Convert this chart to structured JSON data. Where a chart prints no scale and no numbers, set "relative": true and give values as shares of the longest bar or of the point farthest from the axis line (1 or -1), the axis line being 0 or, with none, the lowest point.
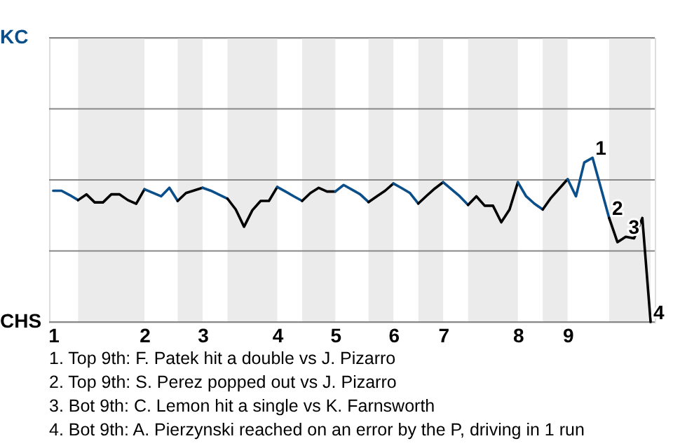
{
  "chart_data": {
    "type": "line",
    "relative": true,
    "categories": [
      "1",
      null,
      null,
      null,
      null,
      null,
      null,
      null,
      null,
      null,
      null,
      "2",
      null,
      null,
      null,
      null,
      null,
      null,
      "3",
      null,
      null,
      null,
      null,
      null,
      null,
      null,
      null,
      "4",
      null,
      null,
      null,
      null,
      null,
      null,
      "5",
      null,
      null,
      null,
      null,
      null,
      null,
      "6",
      null,
      null,
      null,
      null,
      null,
      "7",
      null,
      null,
      null,
      null,
      null,
      null,
      null,
      null,
      "8",
      null,
      null,
      null,
      null,
      null,
      "9",
      null,
      null,
      null,
      null,
      null,
      null,
      null,
      null,
      null,
      null
    ],
    "series": [
      {
        "color": "#0b4f8a",
        "values": [
          0.799,
          0.799,
          0.772,
          0.742,
          null,
          null,
          null,
          null,
          null,
          null,
          null,
          null,
          null,
          null,
          null,
          null,
          null,
          null,
          null,
          null,
          null,
          null,
          null,
          null,
          null,
          null,
          null,
          null,
          null,
          null,
          null,
          null,
          null,
          null,
          null,
          null,
          null,
          null,
          null,
          null,
          null,
          null,
          null,
          null,
          null,
          null,
          null,
          null,
          null,
          null,
          null,
          null,
          null,
          null,
          null,
          null,
          null,
          null,
          null,
          null,
          null,
          null,
          null,
          null,
          null,
          null,
          null,
          null,
          null,
          null,
          null,
          null,
          null
        ]
      },
      {
        "color": "#000000",
        "values": [
          null,
          null,
          null,
          0.742,
          0.777,
          0.728,
          0.728,
          0.777,
          0.777,
          0.742,
          0.72,
          0.808,
          null,
          null,
          null,
          null,
          null,
          null,
          null,
          null,
          null,
          null,
          null,
          null,
          null,
          null,
          null,
          null,
          null,
          null,
          null,
          null,
          null,
          null,
          null,
          null,
          null,
          null,
          null,
          null,
          null,
          null,
          null,
          null,
          null,
          null,
          null,
          null,
          null,
          null,
          null,
          null,
          null,
          null,
          null,
          null,
          null,
          null,
          null,
          null,
          null,
          null,
          null,
          null,
          null,
          null,
          null,
          null,
          null,
          null,
          null,
          null,
          null
        ]
      },
      {
        "color": "#0b4f8a",
        "values": [
          null,
          null,
          null,
          null,
          null,
          null,
          null,
          null,
          null,
          null,
          null,
          0.808,
          0.787,
          0.765,
          0.817,
          0.737,
          null,
          null,
          null,
          null,
          null,
          null,
          null,
          null,
          null,
          null,
          null,
          null,
          null,
          null,
          null,
          null,
          null,
          null,
          null,
          null,
          null,
          null,
          null,
          null,
          null,
          null,
          null,
          null,
          null,
          null,
          null,
          null,
          null,
          null,
          null,
          null,
          null,
          null,
          null,
          null,
          null,
          null,
          null,
          null,
          null,
          null,
          null,
          null,
          null,
          null,
          null,
          null,
          null,
          null,
          null,
          null,
          null
        ]
      },
      {
        "color": "#000000",
        "values": [
          null,
          null,
          null,
          null,
          null,
          null,
          null,
          null,
          null,
          null,
          null,
          null,
          null,
          null,
          null,
          0.737,
          0.785,
          0.801,
          0.817,
          null,
          null,
          null,
          null,
          null,
          null,
          null,
          null,
          null,
          null,
          null,
          null,
          null,
          null,
          null,
          null,
          null,
          null,
          null,
          null,
          null,
          null,
          null,
          null,
          null,
          null,
          null,
          null,
          null,
          null,
          null,
          null,
          null,
          null,
          null,
          null,
          null,
          null,
          null,
          null,
          null,
          null,
          null,
          null,
          null,
          null,
          null,
          null,
          null,
          null,
          null,
          null,
          null,
          null
        ]
      },
      {
        "color": "#0b4f8a",
        "values": [
          null,
          null,
          null,
          null,
          null,
          null,
          null,
          null,
          null,
          null,
          null,
          null,
          null,
          null,
          null,
          null,
          null,
          null,
          0.817,
          0.799,
          0.775,
          0.751,
          null,
          null,
          null,
          null,
          null,
          null,
          null,
          null,
          null,
          null,
          null,
          null,
          null,
          null,
          null,
          null,
          null,
          null,
          null,
          null,
          null,
          null,
          null,
          null,
          null,
          null,
          null,
          null,
          null,
          null,
          null,
          null,
          null,
          null,
          null,
          null,
          null,
          null,
          null,
          null,
          null,
          null,
          null,
          null,
          null,
          null,
          null,
          null,
          null,
          null,
          null
        ]
      },
      {
        "color": "#000000",
        "values": [
          null,
          null,
          null,
          null,
          null,
          null,
          null,
          null,
          null,
          null,
          null,
          null,
          null,
          null,
          null,
          null,
          null,
          null,
          null,
          null,
          null,
          0.751,
          0.685,
          0.58,
          0.68,
          0.737,
          0.737,
          0.822,
          null,
          null,
          null,
          null,
          null,
          null,
          null,
          null,
          null,
          null,
          null,
          null,
          null,
          null,
          null,
          null,
          null,
          null,
          null,
          null,
          null,
          null,
          null,
          null,
          null,
          null,
          null,
          null,
          null,
          null,
          null,
          null,
          null,
          null,
          null,
          null,
          null,
          null,
          null,
          null,
          null,
          null,
          null,
          null,
          null
        ]
      },
      {
        "color": "#0b4f8a",
        "values": [
          null,
          null,
          null,
          null,
          null,
          null,
          null,
          null,
          null,
          null,
          null,
          null,
          null,
          null,
          null,
          null,
          null,
          null,
          null,
          null,
          null,
          null,
          null,
          null,
          null,
          null,
          null,
          0.822,
          0.794,
          0.765,
          0.737,
          null,
          null,
          null,
          null,
          null,
          null,
          null,
          null,
          null,
          null,
          null,
          null,
          null,
          null,
          null,
          null,
          null,
          null,
          null,
          null,
          null,
          null,
          null,
          null,
          null,
          null,
          null,
          null,
          null,
          null,
          null,
          null,
          null,
          null,
          null,
          null,
          null,
          null,
          null,
          null,
          null,
          null
        ]
      },
      {
        "color": "#000000",
        "values": [
          null,
          null,
          null,
          null,
          null,
          null,
          null,
          null,
          null,
          null,
          null,
          null,
          null,
          null,
          null,
          null,
          null,
          null,
          null,
          null,
          null,
          null,
          null,
          null,
          null,
          null,
          null,
          null,
          null,
          null,
          0.737,
          0.785,
          0.817,
          0.794,
          0.794,
          null,
          null,
          null,
          null,
          null,
          null,
          null,
          null,
          null,
          null,
          null,
          null,
          null,
          null,
          null,
          null,
          null,
          null,
          null,
          null,
          null,
          null,
          null,
          null,
          null,
          null,
          null,
          null,
          null,
          null,
          null,
          null,
          null,
          null,
          null,
          null,
          null,
          null
        ]
      },
      {
        "color": "#0b4f8a",
        "values": [
          null,
          null,
          null,
          null,
          null,
          null,
          null,
          null,
          null,
          null,
          null,
          null,
          null,
          null,
          null,
          null,
          null,
          null,
          null,
          null,
          null,
          null,
          null,
          null,
          null,
          null,
          null,
          null,
          null,
          null,
          null,
          null,
          null,
          null,
          0.794,
          0.834,
          0.806,
          0.777,
          0.73,
          null,
          null,
          null,
          null,
          null,
          null,
          null,
          null,
          null,
          null,
          null,
          null,
          null,
          null,
          null,
          null,
          null,
          null,
          null,
          null,
          null,
          null,
          null,
          null,
          null,
          null,
          null,
          null,
          null,
          null,
          null,
          null,
          null,
          null
        ]
      },
      {
        "color": "#000000",
        "values": [
          null,
          null,
          null,
          null,
          null,
          null,
          null,
          null,
          null,
          null,
          null,
          null,
          null,
          null,
          null,
          null,
          null,
          null,
          null,
          null,
          null,
          null,
          null,
          null,
          null,
          null,
          null,
          null,
          null,
          null,
          null,
          null,
          null,
          null,
          null,
          null,
          null,
          null,
          0.73,
          0.765,
          0.799,
          0.843,
          null,
          null,
          null,
          null,
          null,
          null,
          null,
          null,
          null,
          null,
          null,
          null,
          null,
          null,
          null,
          null,
          null,
          null,
          null,
          null,
          null,
          null,
          null,
          null,
          null,
          null,
          null,
          null,
          null,
          null,
          null
        ]
      },
      {
        "color": "#0b4f8a",
        "values": [
          null,
          null,
          null,
          null,
          null,
          null,
          null,
          null,
          null,
          null,
          null,
          null,
          null,
          null,
          null,
          null,
          null,
          null,
          null,
          null,
          null,
          null,
          null,
          null,
          null,
          null,
          null,
          null,
          null,
          null,
          null,
          null,
          null,
          null,
          null,
          null,
          null,
          null,
          null,
          null,
          null,
          0.843,
          0.815,
          0.785,
          0.721,
          null,
          null,
          null,
          null,
          null,
          null,
          null,
          null,
          null,
          null,
          null,
          null,
          null,
          null,
          null,
          null,
          null,
          null,
          null,
          null,
          null,
          null,
          null,
          null,
          null,
          null,
          null,
          null
        ]
      },
      {
        "color": "#000000",
        "values": [
          null,
          null,
          null,
          null,
          null,
          null,
          null,
          null,
          null,
          null,
          null,
          null,
          null,
          null,
          null,
          null,
          null,
          null,
          null,
          null,
          null,
          null,
          null,
          null,
          null,
          null,
          null,
          null,
          null,
          null,
          null,
          null,
          null,
          null,
          null,
          null,
          null,
          null,
          null,
          null,
          null,
          null,
          null,
          null,
          0.721,
          0.768,
          0.813,
          0.851,
          null,
          null,
          null,
          null,
          null,
          null,
          null,
          null,
          null,
          null,
          null,
          null,
          null,
          null,
          null,
          null,
          null,
          null,
          null,
          null,
          null,
          null,
          null,
          null,
          null
        ]
      },
      {
        "color": "#0b4f8a",
        "values": [
          null,
          null,
          null,
          null,
          null,
          null,
          null,
          null,
          null,
          null,
          null,
          null,
          null,
          null,
          null,
          null,
          null,
          null,
          null,
          null,
          null,
          null,
          null,
          null,
          null,
          null,
          null,
          null,
          null,
          null,
          null,
          null,
          null,
          null,
          null,
          null,
          null,
          null,
          null,
          null,
          null,
          null,
          null,
          null,
          null,
          null,
          null,
          0.851,
          0.808,
          0.765,
          0.713,
          null,
          null,
          null,
          null,
          null,
          null,
          null,
          null,
          null,
          null,
          null,
          null,
          null,
          null,
          null,
          null,
          null,
          null,
          null,
          null,
          null,
          null
        ]
      },
      {
        "color": "#000000",
        "values": [
          null,
          null,
          null,
          null,
          null,
          null,
          null,
          null,
          null,
          null,
          null,
          null,
          null,
          null,
          null,
          null,
          null,
          null,
          null,
          null,
          null,
          null,
          null,
          null,
          null,
          null,
          null,
          null,
          null,
          null,
          null,
          null,
          null,
          null,
          null,
          null,
          null,
          null,
          null,
          null,
          null,
          null,
          null,
          null,
          null,
          null,
          null,
          null,
          null,
          null,
          0.713,
          0.765,
          0.708,
          0.708,
          0.607,
          0.685,
          0.851,
          null,
          null,
          null,
          null,
          null,
          null,
          null,
          null,
          null,
          null,
          null,
          null,
          null,
          null,
          null,
          null
        ]
      },
      {
        "color": "#0b4f8a",
        "values": [
          null,
          null,
          null,
          null,
          null,
          null,
          null,
          null,
          null,
          null,
          null,
          null,
          null,
          null,
          null,
          null,
          null,
          null,
          null,
          null,
          null,
          null,
          null,
          null,
          null,
          null,
          null,
          null,
          null,
          null,
          null,
          null,
          null,
          null,
          null,
          null,
          null,
          null,
          null,
          null,
          null,
          null,
          null,
          null,
          null,
          null,
          null,
          null,
          null,
          null,
          null,
          null,
          null,
          null,
          null,
          null,
          0.851,
          0.765,
          0.72,
          0.685,
          null,
          null,
          null,
          null,
          null,
          null,
          null,
          null,
          null,
          null,
          null,
          null,
          null
        ]
      },
      {
        "color": "#000000",
        "values": [
          null,
          null,
          null,
          null,
          null,
          null,
          null,
          null,
          null,
          null,
          null,
          null,
          null,
          null,
          null,
          null,
          null,
          null,
          null,
          null,
          null,
          null,
          null,
          null,
          null,
          null,
          null,
          null,
          null,
          null,
          null,
          null,
          null,
          null,
          null,
          null,
          null,
          null,
          null,
          null,
          null,
          null,
          null,
          null,
          null,
          null,
          null,
          null,
          null,
          null,
          null,
          null,
          null,
          null,
          null,
          null,
          null,
          null,
          null,
          0.685,
          0.756,
          0.813,
          0.869,
          null,
          null,
          null,
          null,
          null,
          null,
          null,
          null,
          null,
          null
        ]
      },
      {
        "color": "#0b4f8a",
        "values": [
          null,
          null,
          null,
          null,
          null,
          null,
          null,
          null,
          null,
          null,
          null,
          null,
          null,
          null,
          null,
          null,
          null,
          null,
          null,
          null,
          null,
          null,
          null,
          null,
          null,
          null,
          null,
          null,
          null,
          null,
          null,
          null,
          null,
          null,
          null,
          null,
          null,
          null,
          null,
          null,
          null,
          null,
          null,
          null,
          null,
          null,
          null,
          null,
          null,
          null,
          null,
          null,
          null,
          null,
          null,
          null,
          null,
          null,
          null,
          null,
          null,
          null,
          0.869,
          0.765,
          0.971,
          1,
          0.817,
          0.633,
          null,
          null,
          null,
          null,
          null
        ]
      },
      {
        "color": "#000000",
        "values": [
          null,
          null,
          null,
          null,
          null,
          null,
          null,
          null,
          null,
          null,
          null,
          null,
          null,
          null,
          null,
          null,
          null,
          null,
          null,
          null,
          null,
          null,
          null,
          null,
          null,
          null,
          null,
          null,
          null,
          null,
          null,
          null,
          null,
          null,
          null,
          null,
          null,
          null,
          null,
          null,
          null,
          null,
          null,
          null,
          null,
          null,
          null,
          null,
          null,
          null,
          null,
          null,
          null,
          null,
          null,
          null,
          null,
          null,
          null,
          null,
          null,
          null,
          null,
          null,
          null,
          null,
          null,
          0.633,
          0.486,
          0.519,
          0.509,
          0.633,
          0
        ]
      }
    ],
    "ref_lines": [
      {
        "axis": "y",
        "value": 0,
        "label": "CHS",
        "color": "#888888"
      },
      {
        "axis": "y",
        "value": 0.433,
        "color": "#888888"
      },
      {
        "axis": "y",
        "value": 0.865,
        "color": "#888888"
      },
      {
        "axis": "y",
        "value": 1.298,
        "color": "#888888"
      },
      {
        "axis": "y",
        "value": 1.73,
        "label": "KC",
        "color": "#888888"
      }
    ],
    "annotations": [
      {
        "text": "1",
        "y": 1
      },
      {
        "text": "2",
        "y": 0.633
      },
      {
        "text": "3",
        "y": 0.519
      },
      {
        "text": "4",
        "y": 0
      },
      "1. Top 9th: F. Patek hit a double vs J. Pizarro",
      "2. Top 9th: S. Perez popped out vs J. Pizarro",
      "3. Bot 9th: C. Lemon hit a single vs K. Farnsworth",
      "4. Bot 9th: A. Pierzynski reached on an error by the P, driving in 1 run"
    ]
  }
}
